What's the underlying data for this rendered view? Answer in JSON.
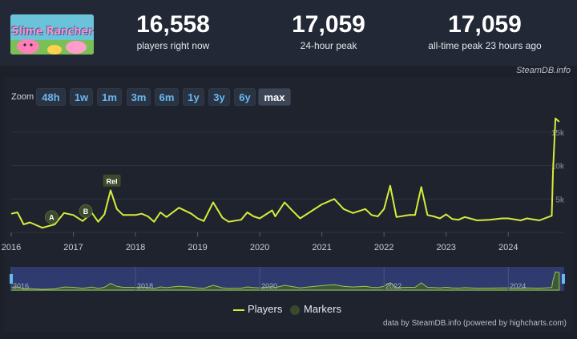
{
  "header": {
    "stats": [
      {
        "value": "16,558",
        "label": "players right now"
      },
      {
        "value": "17,059",
        "label": "24-hour peak"
      },
      {
        "value": "17,059",
        "label": "all-time peak 23 hours ago"
      }
    ],
    "game_logo_text": "Slime Rancher",
    "credit": "SteamDB.info"
  },
  "zoom": {
    "label": "Zoom",
    "buttons": [
      "48h",
      "1w",
      "1m",
      "3m",
      "6m",
      "1y",
      "3y",
      "6y",
      "max"
    ],
    "active": "max"
  },
  "chart_data": {
    "type": "line",
    "x_axis_labels": [
      "2016",
      "2017",
      "2018",
      "2019",
      "2020",
      "2021",
      "2022",
      "2023",
      "2024"
    ],
    "y_axis_labels": [
      "15k",
      "10k",
      "5k"
    ],
    "ylim": [
      0,
      18000
    ],
    "grid": true,
    "series": [
      {
        "name": "Players",
        "color": "#d7ec3c",
        "x": [
          2016.0,
          2016.1,
          2016.2,
          2016.3,
          2016.5,
          2016.7,
          2016.85,
          2017.0,
          2017.15,
          2017.3,
          2017.4,
          2017.5,
          2017.6,
          2017.7,
          2017.8,
          2018.0,
          2018.1,
          2018.2,
          2018.3,
          2018.4,
          2018.5,
          2018.7,
          2018.9,
          2019.0,
          2019.1,
          2019.25,
          2019.4,
          2019.5,
          2019.7,
          2019.8,
          2019.9,
          2020.0,
          2020.2,
          2020.25,
          2020.4,
          2020.5,
          2020.65,
          2020.75,
          2021.0,
          2021.2,
          2021.35,
          2021.5,
          2021.7,
          2021.8,
          2021.9,
          2022.0,
          2022.1,
          2022.2,
          2022.4,
          2022.5,
          2022.6,
          2022.7,
          2022.8,
          2022.9,
          2023.0,
          2023.1,
          2023.2,
          2023.3,
          2023.5,
          2023.7,
          2023.9,
          2024.0,
          2024.2,
          2024.3,
          2024.5,
          2024.7,
          2024.72,
          2024.76,
          2024.82
        ],
        "values": [
          2800,
          3000,
          1200,
          1500,
          700,
          1200,
          2900,
          2600,
          1700,
          2900,
          1600,
          2700,
          6300,
          3500,
          2600,
          2600,
          2800,
          2400,
          1600,
          3000,
          2300,
          3700,
          2800,
          2100,
          1700,
          4500,
          2200,
          1600,
          1900,
          3000,
          2400,
          2100,
          3300,
          2400,
          4500,
          3500,
          2100,
          2700,
          4200,
          5000,
          3500,
          2900,
          3500,
          2600,
          2400,
          3500,
          7000,
          2300,
          2600,
          2600,
          6800,
          2600,
          2400,
          2100,
          2700,
          2000,
          1900,
          2300,
          1800,
          1900,
          2100,
          2100,
          1800,
          2100,
          1800,
          2500,
          9000,
          17059,
          16558
        ]
      }
    ],
    "markers": [
      {
        "label": "A",
        "x": 2016.65,
        "value": 2300
      },
      {
        "label": "B",
        "x": 2017.2,
        "value": 3200
      },
      {
        "label": "Rel",
        "x": 2017.62,
        "value": 7700
      }
    ],
    "legend": [
      {
        "name": "Players",
        "color": "#d7ec3c"
      },
      {
        "name": "Markers",
        "color": "#3b4a2c"
      }
    ],
    "legend_placement": "bottom"
  },
  "navigator": {
    "labels": [
      "2016",
      "2018",
      "2020",
      "2022",
      "2024"
    ]
  },
  "footer": {
    "credit": "data by SteamDB.info (powered by highcharts.com)"
  }
}
